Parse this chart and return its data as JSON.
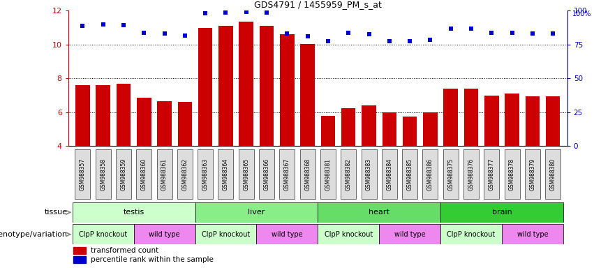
{
  "title": "GDS4791 / 1455959_PM_s_at",
  "samples": [
    "GSM988357",
    "GSM988358",
    "GSM988359",
    "GSM988360",
    "GSM988361",
    "GSM988362",
    "GSM988363",
    "GSM988364",
    "GSM988365",
    "GSM988366",
    "GSM988367",
    "GSM988368",
    "GSM988381",
    "GSM988382",
    "GSM988383",
    "GSM988384",
    "GSM988385",
    "GSM988386",
    "GSM988375",
    "GSM988376",
    "GSM988377",
    "GSM988378",
    "GSM988379",
    "GSM988380"
  ],
  "bar_values": [
    7.6,
    7.6,
    7.7,
    6.85,
    6.65,
    6.6,
    11.0,
    11.1,
    11.35,
    11.1,
    10.6,
    10.05,
    5.8,
    6.25,
    6.4,
    6.0,
    5.75,
    6.0,
    7.4,
    7.4,
    7.0,
    7.1,
    6.95,
    6.95
  ],
  "dot_values_raw": [
    11.1,
    11.2,
    11.15,
    10.7,
    10.65,
    10.55,
    11.85,
    11.9,
    11.95,
    11.9,
    10.65,
    10.5,
    10.2,
    10.7,
    10.6,
    10.2,
    10.2,
    10.3,
    10.95,
    10.95,
    10.7,
    10.7,
    10.65,
    10.65
  ],
  "ylim": [
    4,
    12
  ],
  "yticks_left": [
    4,
    6,
    8,
    10,
    12
  ],
  "yticks_right": [
    0,
    25,
    50,
    75,
    100
  ],
  "y2lim": [
    0,
    100
  ],
  "bar_color": "#cc0000",
  "dot_color": "#0000cc",
  "grid_lines": [
    6,
    8,
    10
  ],
  "tissue_data": [
    {
      "label": "testis",
      "start": 0,
      "end": 6,
      "color": "#ccffcc"
    },
    {
      "label": "liver",
      "start": 6,
      "end": 12,
      "color": "#88ee88"
    },
    {
      "label": "heart",
      "start": 12,
      "end": 18,
      "color": "#66dd66"
    },
    {
      "label": "brain",
      "start": 18,
      "end": 24,
      "color": "#33cc33"
    }
  ],
  "geno_data": [
    {
      "label": "ClpP knockout",
      "start": 0,
      "end": 3,
      "color": "#ccffcc"
    },
    {
      "label": "wild type",
      "start": 3,
      "end": 6,
      "color": "#ee88ee"
    },
    {
      "label": "ClpP knockout",
      "start": 6,
      "end": 9,
      "color": "#ccffcc"
    },
    {
      "label": "wild type",
      "start": 9,
      "end": 12,
      "color": "#ee88ee"
    },
    {
      "label": "ClpP knockout",
      "start": 12,
      "end": 15,
      "color": "#ccffcc"
    },
    {
      "label": "wild type",
      "start": 15,
      "end": 18,
      "color": "#ee88ee"
    },
    {
      "label": "ClpP knockout",
      "start": 18,
      "end": 21,
      "color": "#ccffcc"
    },
    {
      "label": "wild type",
      "start": 21,
      "end": 24,
      "color": "#ee88ee"
    }
  ],
  "legend_bar": "transformed count",
  "legend_dot": "percentile rank within the sample",
  "tissue_row_label": "tissue",
  "geno_row_label": "genotype/variation",
  "tick_bg_color": "#dddddd",
  "label_arrow_color": "#888888"
}
